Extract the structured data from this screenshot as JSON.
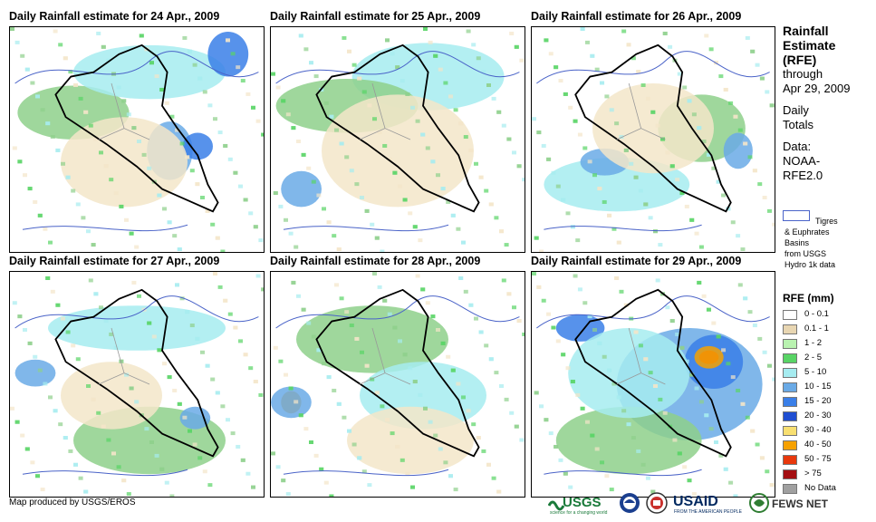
{
  "panels": [
    {
      "title": "Daily Rainfall estimate for 24 Apr., 2009",
      "blobs": [
        [
          "#6aaae6",
          0.63,
          0.55,
          0.09,
          0.13
        ],
        [
          "#3a7fe8",
          0.74,
          0.53,
          0.06,
          0.06
        ],
        [
          "#8ed08b",
          0.25,
          0.38,
          0.22,
          0.12
        ],
        [
          "#f3e6c9",
          0.45,
          0.6,
          0.25,
          0.2
        ],
        [
          "#a6ecf0",
          0.55,
          0.2,
          0.3,
          0.12
        ],
        [
          "#3a7fe8",
          0.86,
          0.12,
          0.08,
          0.1
        ]
      ]
    },
    {
      "title": "Daily Rainfall estimate for 25 Apr., 2009",
      "blobs": [
        [
          "#a6ecf0",
          0.62,
          0.22,
          0.3,
          0.15
        ],
        [
          "#8ed08b",
          0.3,
          0.35,
          0.28,
          0.12
        ],
        [
          "#f3e6c9",
          0.5,
          0.55,
          0.3,
          0.25
        ],
        [
          "#6aaae6",
          0.12,
          0.72,
          0.08,
          0.08
        ]
      ]
    },
    {
      "title": "Daily Rainfall estimate for 26 Apr., 2009",
      "blobs": [
        [
          "#a6ecf0",
          0.35,
          0.7,
          0.3,
          0.12
        ],
        [
          "#6aaae6",
          0.3,
          0.6,
          0.1,
          0.06
        ],
        [
          "#8ed08b",
          0.7,
          0.45,
          0.18,
          0.15
        ],
        [
          "#f3e6c9",
          0.5,
          0.45,
          0.25,
          0.2
        ],
        [
          "#6aaae6",
          0.85,
          0.55,
          0.06,
          0.08
        ]
      ]
    },
    {
      "title": "Daily Rainfall estimate for 27 Apr., 2009",
      "blobs": [
        [
          "#8ed08b",
          0.55,
          0.75,
          0.3,
          0.15
        ],
        [
          "#6aaae6",
          0.1,
          0.45,
          0.08,
          0.06
        ],
        [
          "#a6ecf0",
          0.5,
          0.25,
          0.35,
          0.1
        ],
        [
          "#6aaae6",
          0.73,
          0.65,
          0.06,
          0.05
        ],
        [
          "#f3e6c9",
          0.4,
          0.55,
          0.2,
          0.15
        ]
      ]
    },
    {
      "title": "Daily Rainfall estimate for 28 Apr., 2009",
      "blobs": [
        [
          "#8ed08b",
          0.4,
          0.3,
          0.3,
          0.15
        ],
        [
          "#f6a100",
          0.08,
          0.58,
          0.04,
          0.05
        ],
        [
          "#6aaae6",
          0.08,
          0.58,
          0.08,
          0.07
        ],
        [
          "#a6ecf0",
          0.6,
          0.55,
          0.25,
          0.15
        ],
        [
          "#f3e6c9",
          0.55,
          0.75,
          0.25,
          0.15
        ]
      ]
    },
    {
      "title": "Daily Rainfall estimate for 29 Apr., 2009",
      "blobs": [
        [
          "#6aaae6",
          0.65,
          0.5,
          0.3,
          0.25
        ],
        [
          "#3a7fe8",
          0.75,
          0.4,
          0.12,
          0.12
        ],
        [
          "#e8380c",
          0.73,
          0.38,
          0.04,
          0.03
        ],
        [
          "#f6a100",
          0.73,
          0.38,
          0.06,
          0.05
        ],
        [
          "#3a7fe8",
          0.2,
          0.25,
          0.1,
          0.06
        ],
        [
          "#8ed08b",
          0.4,
          0.75,
          0.3,
          0.15
        ],
        [
          "#a6ecf0",
          0.4,
          0.45,
          0.25,
          0.2
        ]
      ]
    }
  ],
  "side": {
    "title": [
      "Rainfall",
      "Estimate",
      "(RFE)"
    ],
    "sub": [
      "through",
      "Apr 29, 2009"
    ],
    "totals": [
      "Daily",
      "Totals"
    ],
    "data": [
      "Data:",
      "NOAA-",
      "RFE2.0"
    ],
    "basin_lines": [
      "Tigres",
      "& Euphrates",
      "Basins",
      "from USGS",
      "Hydro 1k data"
    ]
  },
  "legend": {
    "title": "RFE (mm)",
    "items": [
      {
        "label": "0 - 0.1",
        "color": "#ffffff"
      },
      {
        "label": "0.1 - 1",
        "color": "#e8d6b2"
      },
      {
        "label": "1 - 2",
        "color": "#b9f2b0"
      },
      {
        "label": "2 - 5",
        "color": "#58d465"
      },
      {
        "label": "5 - 10",
        "color": "#a6ecf0"
      },
      {
        "label": "10 - 15",
        "color": "#6aaae6"
      },
      {
        "label": "15 - 20",
        "color": "#3a7fe8"
      },
      {
        "label": "20 - 30",
        "color": "#1f4ed1"
      },
      {
        "label": "30 - 40",
        "color": "#f8df70"
      },
      {
        "label": "40 - 50",
        "color": "#f6a100"
      },
      {
        "label": "50 - 75",
        "color": "#e8380c"
      },
      {
        "label": "> 75",
        "color": "#a40f12"
      },
      {
        "label": "No Data",
        "color": "#a0a0a0"
      }
    ]
  },
  "footer": {
    "credit": "Map produced by USGS/EROS"
  },
  "logos": {
    "usgs": "USGS",
    "usgs_tag": "science for a changing world",
    "usaid": "USAID",
    "usaid_tag": "FROM THE AMERICAN PEOPLE",
    "fews": "FEWS NET"
  }
}
